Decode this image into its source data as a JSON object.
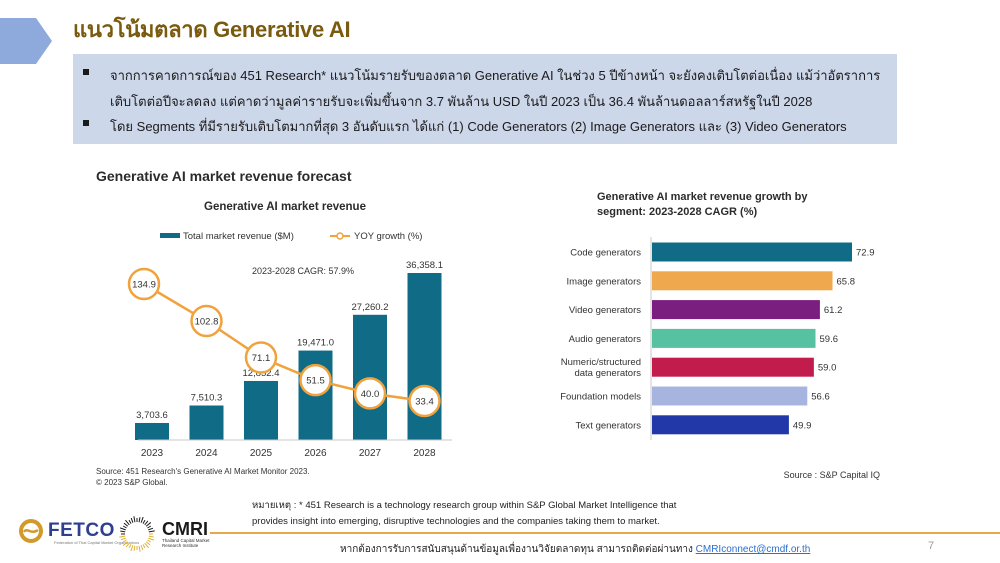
{
  "page": {
    "title": "แนวโน้มตลาด Generative AI",
    "page_number": "7"
  },
  "summary": {
    "bullets": [
      {
        "lines": [
          "จากการคาดการณ์ของ 451 Research* แนวโน้มรายรับของตลาด Generative AI ในช่วง 5 ปีข้างหน้า จะยังคงเติบโตต่อเนื่อง แม้ว่าอัตราการ",
          "เติบโตต่อปีจะลดลง แต่คาดว่ามูลค่ารายรับจะเพิ่มขึ้นจาก 3.7 พันล้าน USD ในปี 2023  เป็น 36.4 พันล้านดอลลาร์สหรัฐในปี 2028"
        ]
      },
      {
        "lines": [
          "โดย Segments ที่มีรายรับเติบโตมากที่สุด 3 อันดับแรก ได้แก่ (1) Code Generators  (2) Image Generators และ (3) Video Generators"
        ]
      }
    ]
  },
  "chart_data": [
    {
      "type": "bar",
      "panel_title": "Generative AI market revenue forecast",
      "title": "Generative AI market revenue",
      "annotation": "2023-2028 CAGR: 57.9%",
      "categories": [
        "2023",
        "2024",
        "2025",
        "2026",
        "2027",
        "2028"
      ],
      "series": [
        {
          "name": "Total market revenue ($M)",
          "kind": "bar",
          "color": "#0f6b86",
          "values": [
            3703.6,
            7510.3,
            12852.4,
            19471.0,
            27260.2,
            36358.1
          ],
          "labels": [
            "3,703.6",
            "7,510.3",
            "12,852.4",
            "19,471.0",
            "27,260.2",
            "36,358.1"
          ]
        },
        {
          "name": "YOY growth (%)",
          "kind": "line",
          "color": "#f0a23c",
          "values": [
            134.9,
            102.8,
            71.1,
            51.5,
            40.0,
            33.4
          ],
          "labels": [
            "134.9",
            "102.8",
            "71.1",
            "51.5",
            "40.0",
            "33.4"
          ]
        }
      ],
      "xlabel": "",
      "ylabel": "",
      "grid": false,
      "legend": "top",
      "source": [
        "Source: 451 Research's Generative AI Market Monitor 2023.",
        "© 2023 S&P Global."
      ]
    },
    {
      "type": "bar",
      "orientation": "horizontal",
      "title_lines": [
        "Generative AI market revenue growth by",
        "segment: 2023-2028 CAGR (%)"
      ],
      "categories": [
        [
          "Code generators"
        ],
        [
          "Image generators"
        ],
        [
          "Video generators"
        ],
        [
          "Audio generators"
        ],
        [
          "Numeric/structured",
          "data generators"
        ],
        [
          "Foundation models"
        ],
        [
          "Text generators"
        ]
      ],
      "values": [
        72.9,
        65.8,
        61.2,
        59.6,
        59.0,
        56.6,
        49.9
      ],
      "labels": [
        "72.9",
        "65.8",
        "61.2",
        "59.6",
        "59.0",
        "56.6",
        "49.9"
      ],
      "colors": [
        "#0f6b86",
        "#f0a84f",
        "#7a1f80",
        "#57c2a2",
        "#c21c4d",
        "#a8b4e0",
        "#2238a8"
      ],
      "xlabel": "",
      "ylabel": "",
      "grid": false,
      "source": "Source : S&P Capital IQ"
    }
  ],
  "note": {
    "lines": [
      "หมายเหตุ : * 451 Research is a technology research group within S&P Global Market Intelligence that",
      "provides insight into emerging, disruptive technologies and the companies taking them to market."
    ]
  },
  "footer": {
    "contact_text": "หากต้องการรับการสนับสนุนด้านข้อมูลเพื่องานวิจัยตลาดทุน สามารถติดต่อผ่านทาง ",
    "contact_email": "CMRIconnect@cmdf.or.th"
  },
  "logos": {
    "fetco": {
      "name": "FETCO",
      "tagline": "Federation of Thai Capital Market Organizations"
    },
    "cmri": {
      "name": "CMRI",
      "tagline_lines": [
        "Thailand Capital Market",
        "Research Institute"
      ]
    }
  },
  "colors": {
    "title": "#7a5a0e",
    "summary_bg": "#cdd7ea",
    "arrow": "#8ea9dc",
    "footer_rule": "#e8a84a",
    "link": "#2a6fd1"
  }
}
